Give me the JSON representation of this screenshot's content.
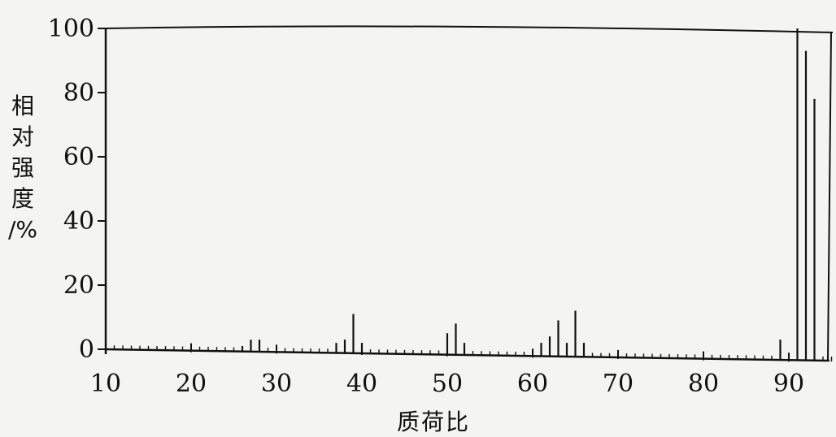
{
  "chart_data": {
    "type": "bar",
    "xlabel": "质荷比",
    "ylabel": "相对强度/%",
    "xlim": [
      10,
      97
    ],
    "ylim": [
      0,
      100
    ],
    "x_ticks": [
      10,
      20,
      30,
      40,
      50,
      60,
      70,
      80,
      90
    ],
    "y_ticks": [
      0,
      20,
      40,
      60,
      80,
      100
    ],
    "grid": false,
    "peaks": [
      {
        "mz": 26,
        "intensity": 1
      },
      {
        "mz": 27,
        "intensity": 3
      },
      {
        "mz": 28,
        "intensity": 3
      },
      {
        "mz": 37,
        "intensity": 2
      },
      {
        "mz": 38,
        "intensity": 3
      },
      {
        "mz": 39,
        "intensity": 11
      },
      {
        "mz": 40,
        "intensity": 2
      },
      {
        "mz": 50,
        "intensity": 5
      },
      {
        "mz": 51,
        "intensity": 8
      },
      {
        "mz": 52,
        "intensity": 2
      },
      {
        "mz": 61,
        "intensity": 2
      },
      {
        "mz": 62,
        "intensity": 4
      },
      {
        "mz": 63,
        "intensity": 9
      },
      {
        "mz": 64,
        "intensity": 2
      },
      {
        "mz": 65,
        "intensity": 12
      },
      {
        "mz": 66,
        "intensity": 2
      },
      {
        "mz": 89,
        "intensity": 3
      },
      {
        "mz": 91,
        "intensity": 100
      },
      {
        "mz": 92,
        "intensity": 93
      },
      {
        "mz": 93,
        "intensity": 78
      }
    ]
  }
}
